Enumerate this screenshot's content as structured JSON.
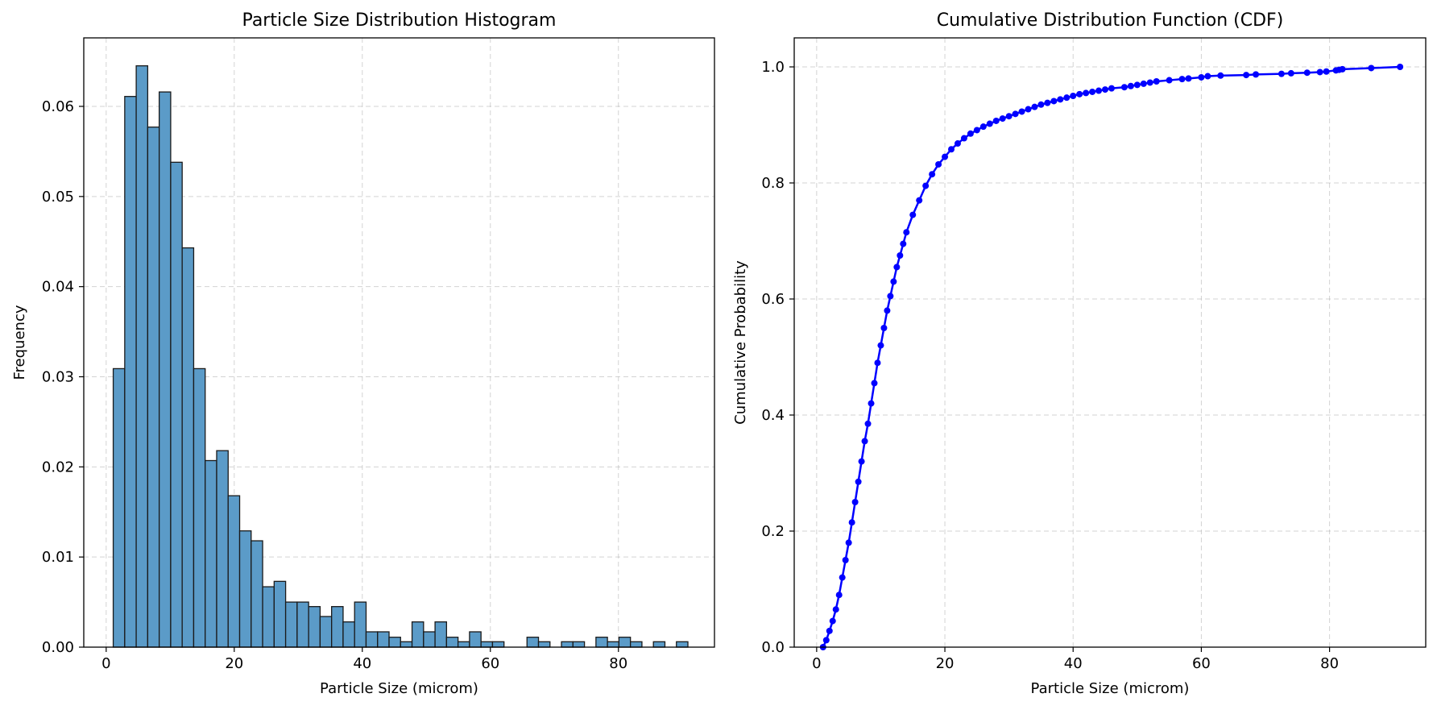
{
  "chart_data": [
    {
      "type": "bar",
      "title": "Particle Size Distribution Histogram",
      "xlabel": "Particle Size (microm)",
      "ylabel": "Frequency",
      "xlim": [
        -3.5,
        95
      ],
      "ylim": [
        0,
        0.0676
      ],
      "xticks": [
        0,
        20,
        40,
        60,
        80
      ],
      "yticks": [
        0.0,
        0.01,
        0.02,
        0.03,
        0.04,
        0.05,
        0.06
      ],
      "ytick_labels": [
        "0.00",
        "0.01",
        "0.02",
        "0.03",
        "0.04",
        "0.05",
        "0.06"
      ],
      "grid": true,
      "bin_start": 1.1,
      "bin_width": 1.795,
      "values": [
        0.0309,
        0.0611,
        0.0645,
        0.0577,
        0.0616,
        0.0538,
        0.0443,
        0.0309,
        0.0207,
        0.0218,
        0.0168,
        0.0129,
        0.0118,
        0.0067,
        0.0073,
        0.005,
        0.005,
        0.0045,
        0.0034,
        0.0045,
        0.0028,
        0.005,
        0.0017,
        0.0017,
        0.0011,
        0.0006,
        0.0028,
        0.0017,
        0.0028,
        0.0011,
        0.0006,
        0.0017,
        0.0006,
        0.0006,
        0.0,
        0.0,
        0.0011,
        0.0006,
        0.0,
        0.0006,
        0.0006,
        0.0,
        0.0011,
        0.0006,
        0.0011,
        0.0006,
        0.0,
        0.0006,
        0.0,
        0.0006
      ]
    },
    {
      "type": "line",
      "title": "Cumulative Distribution Function (CDF)",
      "xlabel": "Particle Size (microm)",
      "ylabel": "Cumulative Probability",
      "xlim": [
        -3.5,
        95
      ],
      "ylim": [
        0,
        1.05
      ],
      "xticks": [
        0,
        20,
        40,
        60,
        80
      ],
      "yticks": [
        0.0,
        0.2,
        0.4,
        0.6,
        0.8,
        1.0
      ],
      "ytick_labels": [
        "0.0",
        "0.2",
        "0.4",
        "0.6",
        "0.8",
        "1.0"
      ],
      "grid": true,
      "color": "#0000ff",
      "x": [
        1.0,
        1.5,
        2.0,
        2.5,
        3.0,
        3.5,
        4.0,
        4.5,
        5.0,
        5.5,
        6.0,
        6.5,
        7.0,
        7.5,
        8.0,
        8.5,
        9.0,
        9.5,
        10.0,
        10.5,
        11.0,
        11.5,
        12.0,
        12.5,
        13.0,
        13.5,
        14.0,
        15.0,
        16.0,
        17.0,
        18.0,
        19.0,
        20.0,
        21.0,
        22.0,
        23.0,
        24.0,
        25.0,
        26.0,
        27.0,
        28.0,
        29.0,
        30.0,
        31.0,
        32.0,
        33.0,
        34.0,
        35.0,
        36.0,
        37.0,
        38.0,
        39.0,
        40.0,
        41.0,
        42.0,
        43.0,
        44.0,
        45.0,
        46.0,
        48.0,
        49.0,
        50.0,
        51.0,
        52.0,
        53.0,
        55.0,
        57.0,
        58.0,
        60.0,
        61.0,
        63.0,
        67.0,
        68.5,
        72.5,
        74.0,
        76.5,
        78.5,
        79.5,
        81.0,
        81.5,
        82.0,
        86.5,
        91.0
      ],
      "y": [
        0.0,
        0.012,
        0.028,
        0.045,
        0.065,
        0.09,
        0.12,
        0.15,
        0.18,
        0.215,
        0.25,
        0.285,
        0.32,
        0.355,
        0.385,
        0.42,
        0.455,
        0.49,
        0.52,
        0.55,
        0.58,
        0.605,
        0.63,
        0.655,
        0.675,
        0.695,
        0.715,
        0.745,
        0.77,
        0.795,
        0.815,
        0.832,
        0.845,
        0.858,
        0.868,
        0.877,
        0.885,
        0.891,
        0.897,
        0.902,
        0.907,
        0.911,
        0.915,
        0.919,
        0.923,
        0.927,
        0.931,
        0.935,
        0.938,
        0.941,
        0.944,
        0.947,
        0.95,
        0.953,
        0.955,
        0.957,
        0.959,
        0.961,
        0.963,
        0.965,
        0.967,
        0.969,
        0.971,
        0.973,
        0.975,
        0.977,
        0.979,
        0.98,
        0.982,
        0.984,
        0.985,
        0.986,
        0.987,
        0.988,
        0.989,
        0.99,
        0.991,
        0.992,
        0.994,
        0.995,
        0.996,
        0.998,
        1.0
      ]
    }
  ]
}
